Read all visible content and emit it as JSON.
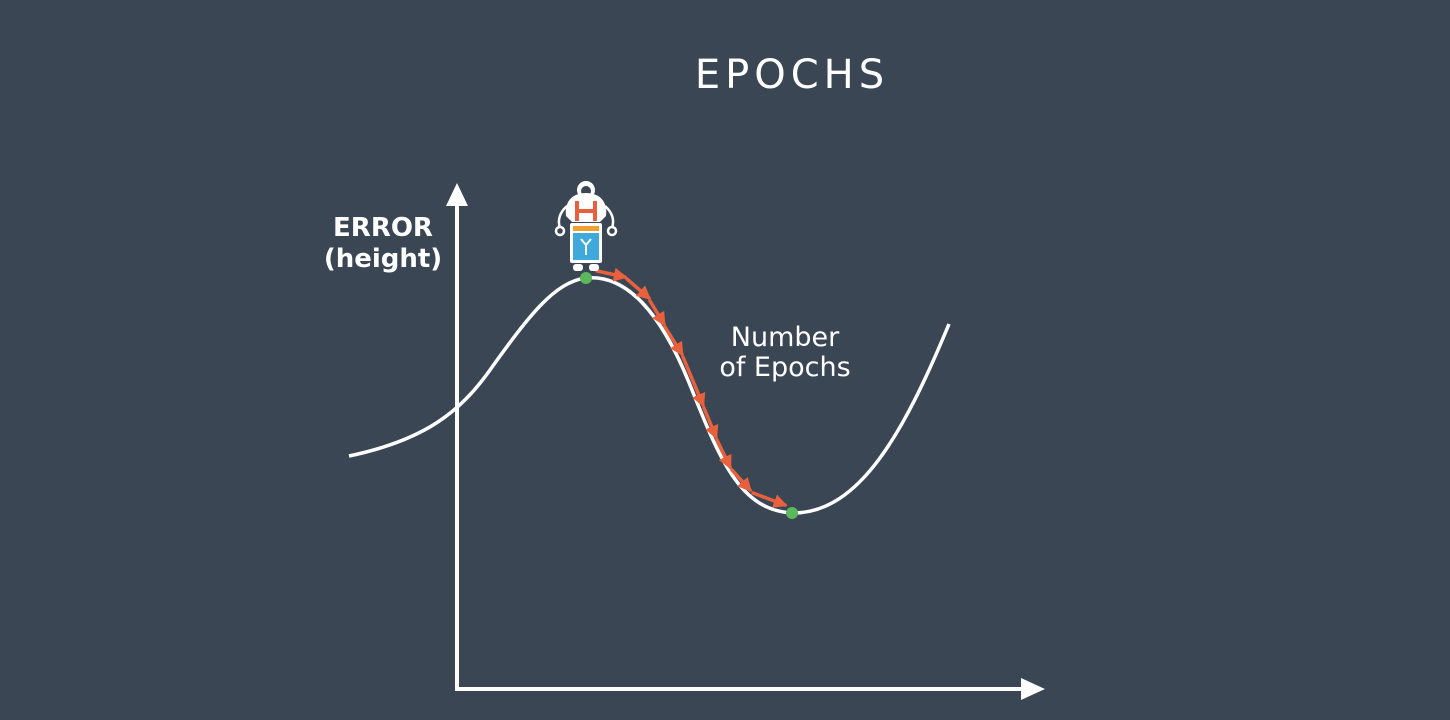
{
  "title": "EPOCHS",
  "y_axis": {
    "line1": "ERROR",
    "line2": "(height)"
  },
  "curve_label": {
    "line1": "Number",
    "line2": "of Epochs"
  },
  "colors": {
    "background": "#3b4655",
    "axis": "#ffffff",
    "curve": "#ffffff",
    "path_arrows": "#e8613c",
    "point": "#5cb85c",
    "robot_body": "#ffffff",
    "robot_accent_red": "#e8613c",
    "robot_accent_blue": "#3fa9dc"
  },
  "icons": {
    "robot": "robot-icon",
    "start_point": "local-maximum-dot",
    "end_point": "local-minimum-dot"
  }
}
